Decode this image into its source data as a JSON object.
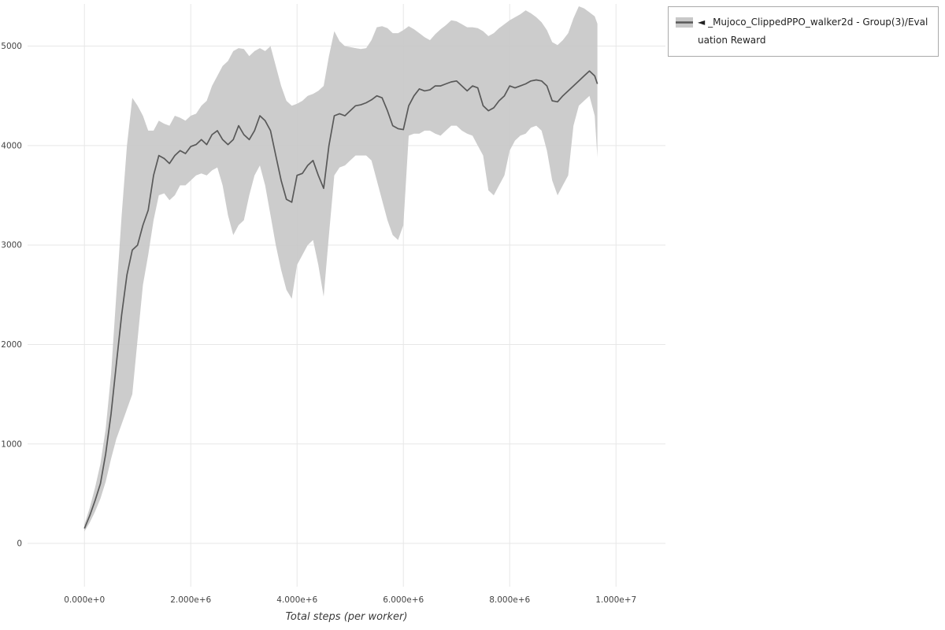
{
  "legend": {
    "marker": "◄",
    "position": "top-right"
  },
  "chart_data": {
    "type": "line",
    "title": "",
    "xlabel": "Total steps (per worker)",
    "ylabel": "",
    "grid": true,
    "legend_position": "top-right",
    "xlim": [
      -1070000,
      10930000
    ],
    "ylim": [
      -435,
      5424
    ],
    "x_ticks": [
      {
        "v": 0,
        "label": "0.000e+0"
      },
      {
        "v": 2000000,
        "label": "2.000e+6"
      },
      {
        "v": 4000000,
        "label": "4.000e+6"
      },
      {
        "v": 6000000,
        "label": "6.000e+6"
      },
      {
        "v": 8000000,
        "label": "8.000e+6"
      },
      {
        "v": 10000000,
        "label": "1.000e+7"
      }
    ],
    "y_ticks": [
      {
        "v": 0,
        "label": "0"
      },
      {
        "v": 1000,
        "label": "1000"
      },
      {
        "v": 2000,
        "label": "2000"
      },
      {
        "v": 3000,
        "label": "3000"
      },
      {
        "v": 4000,
        "label": "4000"
      },
      {
        "v": 5000,
        "label": "5000"
      }
    ],
    "colors": {
      "grid": "#e7e7e7",
      "band": "#c8c8c8",
      "line": "#595959",
      "tick_text": "#444444",
      "legend_border": "#a9a9a9"
    },
    "series": [
      {
        "name": "_Mujoco_ClippedPPO_walker2d - Group(3)/Evaluation Reward",
        "band_meaning": "stddev-band",
        "x": [
          0,
          100000,
          200000,
          300000,
          400000,
          500000,
          600000,
          700000,
          800000,
          900000,
          1000000,
          1100000,
          1200000,
          1300000,
          1400000,
          1500000,
          1600000,
          1700000,
          1800000,
          1900000,
          2000000,
          2100000,
          2200000,
          2300000,
          2400000,
          2500000,
          2600000,
          2700000,
          2800000,
          2900000,
          3000000,
          3100000,
          3200000,
          3300000,
          3400000,
          3500000,
          3600000,
          3700000,
          3800000,
          3900000,
          4000000,
          4100000,
          4200000,
          4300000,
          4400000,
          4500000,
          4600000,
          4700000,
          4800000,
          4900000,
          5000000,
          5100000,
          5200000,
          5300000,
          5400000,
          5500000,
          5600000,
          5700000,
          5800000,
          5900000,
          6000000,
          6100000,
          6200000,
          6300000,
          6400000,
          6500000,
          6600000,
          6700000,
          6800000,
          6900000,
          7000000,
          7100000,
          7200000,
          7300000,
          7400000,
          7500000,
          7600000,
          7700000,
          7800000,
          7900000,
          8000000,
          8100000,
          8200000,
          8300000,
          8400000,
          8500000,
          8600000,
          8700000,
          8800000,
          8900000,
          9000000,
          9100000,
          9200000,
          9300000,
          9400000,
          9500000,
          9600000,
          9650000
        ],
        "mean": [
          150,
          280,
          430,
          600,
          900,
          1300,
          1800,
          2300,
          2700,
          2950,
          3000,
          3200,
          3350,
          3700,
          3900,
          3870,
          3820,
          3900,
          3950,
          3920,
          3990,
          4010,
          4060,
          4010,
          4110,
          4150,
          4060,
          4010,
          4060,
          4200,
          4110,
          4060,
          4150,
          4300,
          4250,
          4150,
          3900,
          3650,
          3460,
          3430,
          3700,
          3720,
          3800,
          3850,
          3700,
          3570,
          4000,
          4300,
          4320,
          4300,
          4350,
          4400,
          4410,
          4430,
          4460,
          4500,
          4480,
          4350,
          4200,
          4170,
          4160,
          4400,
          4500,
          4570,
          4550,
          4560,
          4600,
          4600,
          4620,
          4640,
          4650,
          4600,
          4550,
          4600,
          4580,
          4400,
          4350,
          4380,
          4450,
          4500,
          4600,
          4580,
          4600,
          4620,
          4650,
          4660,
          4650,
          4600,
          4450,
          4440,
          4500,
          4550,
          4600,
          4650,
          4700,
          4750,
          4700,
          4620
        ],
        "lower": [
          120,
          210,
          320,
          450,
          620,
          850,
          1050,
          1200,
          1350,
          1500,
          2050,
          2600,
          2900,
          3250,
          3500,
          3520,
          3450,
          3500,
          3600,
          3600,
          3650,
          3700,
          3720,
          3700,
          3750,
          3780,
          3600,
          3300,
          3100,
          3200,
          3250,
          3500,
          3700,
          3800,
          3600,
          3300,
          3000,
          2750,
          2550,
          2460,
          2800,
          2900,
          3000,
          3050,
          2800,
          2480,
          3100,
          3700,
          3780,
          3800,
          3850,
          3900,
          3900,
          3900,
          3850,
          3650,
          3450,
          3250,
          3100,
          3050,
          3200,
          4100,
          4120,
          4120,
          4150,
          4150,
          4120,
          4100,
          4150,
          4200,
          4200,
          4150,
          4120,
          4100,
          4000,
          3900,
          3550,
          3500,
          3600,
          3700,
          3950,
          4050,
          4100,
          4120,
          4180,
          4200,
          4150,
          3950,
          3650,
          3500,
          3600,
          3700,
          4200,
          4400,
          4450,
          4500,
          4300,
          3880
        ],
        "upper": [
          190,
          360,
          560,
          800,
          1150,
          1700,
          2500,
          3300,
          4000,
          4480,
          4400,
          4300,
          4150,
          4150,
          4250,
          4220,
          4200,
          4300,
          4280,
          4250,
          4300,
          4320,
          4400,
          4450,
          4600,
          4700,
          4800,
          4850,
          4950,
          4980,
          4970,
          4900,
          4950,
          4980,
          4950,
          5000,
          4800,
          4600,
          4450,
          4400,
          4420,
          4450,
          4500,
          4520,
          4550,
          4600,
          4900,
          5150,
          5050,
          5000,
          4990,
          4980,
          4970,
          4980,
          5060,
          5190,
          5200,
          5180,
          5130,
          5130,
          5160,
          5200,
          5170,
          5130,
          5090,
          5060,
          5120,
          5170,
          5210,
          5260,
          5250,
          5220,
          5190,
          5190,
          5180,
          5150,
          5100,
          5130,
          5180,
          5220,
          5260,
          5290,
          5320,
          5360,
          5330,
          5290,
          5240,
          5160,
          5040,
          5010,
          5060,
          5130,
          5280,
          5400,
          5380,
          5340,
          5300,
          5225
        ]
      }
    ]
  }
}
